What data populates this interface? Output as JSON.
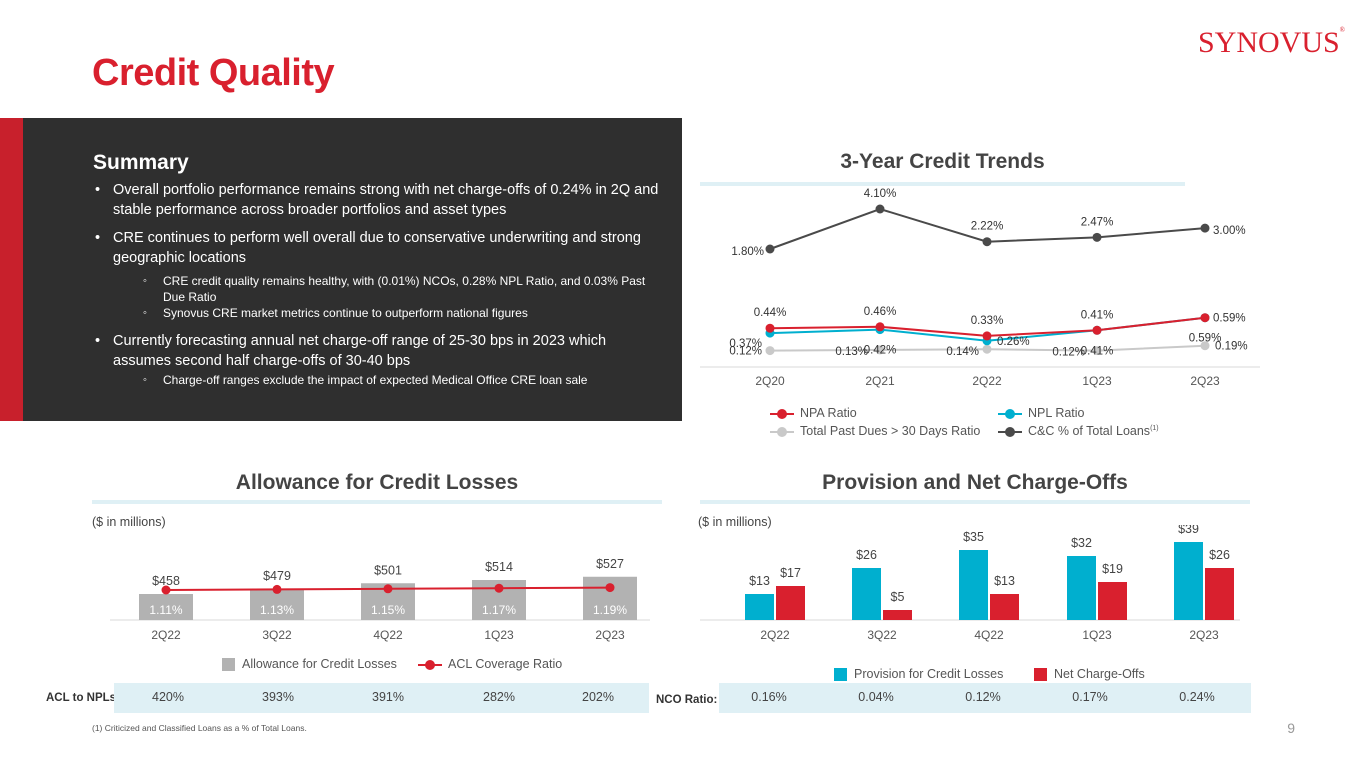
{
  "page": {
    "title": "Credit Quality",
    "logo": "SYNOVUS",
    "page_number": "9",
    "footnote": "(1) Criticized and Classified Loans as a % of Total Loans."
  },
  "colors": {
    "brand_red": "#d9202e",
    "teal": "#00afcf",
    "dark_gray": "#4a4a4a",
    "light_gray": "#c9c9c9",
    "bar_gray": "#b2b2b2",
    "panel": "#2f2f2f"
  },
  "summary": {
    "heading": "Summary",
    "b1": "Overall portfolio performance remains strong with net charge-offs of 0.24% in 2Q and stable performance across broader portfolios and asset types",
    "b2": "CRE continues to perform well overall due to conservative underwriting and strong geographic locations",
    "b2s1": "CRE credit quality remains healthy, with (0.01%) NCOs,  0.28% NPL Ratio, and 0.03% Past Due Ratio",
    "b2s2": "Synovus CRE market metrics continue to outperform national figures",
    "b3": "Currently forecasting annual net charge-off range of 25-30 bps in 2023 which assumes second half charge-offs of 30-40 bps",
    "b3s1": "Charge-off ranges exclude the impact of expected Medical Office CRE loan sale"
  },
  "chart_data": [
    {
      "id": "trends",
      "type": "line",
      "title": "3-Year Credit Trends",
      "categories": [
        "2Q20",
        "2Q21",
        "2Q22",
        "1Q23",
        "2Q23"
      ],
      "series": [
        {
          "name": "NPA Ratio",
          "color": "#d9202e",
          "values": [
            0.44,
            0.46,
            0.33,
            0.41,
            0.59
          ],
          "labels": [
            "0.44%",
            "0.46%",
            "0.33%",
            "0.41%",
            "0.59%"
          ]
        },
        {
          "name": "NPL Ratio",
          "color": "#00afcf",
          "values": [
            0.37,
            0.42,
            0.26,
            0.41,
            0.59
          ],
          "labels": [
            "0.37%",
            "0.42%",
            "0.26%",
            "0.41%",
            "0.59%"
          ]
        },
        {
          "name": "Total Past Dues > 30 Days Ratio",
          "color": "#c9c9c9",
          "values": [
            0.12,
            0.13,
            0.14,
            0.12,
            0.19
          ],
          "labels": [
            "0.12%",
            "0.13%",
            "0.14%",
            "0.12%",
            "0.19%"
          ]
        },
        {
          "name": "C&C % of Total Loans",
          "footnote_marker": "(1)",
          "color": "#4a4a4a",
          "values": [
            1.8,
            4.1,
            2.22,
            2.47,
            3.0
          ],
          "labels": [
            "1.80%",
            "4.10%",
            "2.22%",
            "2.47%",
            "3.00%"
          ]
        }
      ]
    },
    {
      "id": "acl",
      "type": "bar",
      "title": "Allowance for Credit Losses",
      "unit_label": "($ in millions)",
      "categories": [
        "2Q22",
        "3Q22",
        "4Q22",
        "1Q23",
        "2Q23"
      ],
      "series": [
        {
          "name": "Allowance for Credit Losses",
          "color": "#b2b2b2",
          "values": [
            458,
            479,
            501,
            514,
            527
          ],
          "labels": [
            "$458",
            "$479",
            "$501",
            "$514",
            "$527"
          ]
        },
        {
          "name": "ACL Coverage Ratio",
          "color": "#d9202e",
          "values": [
            1.11,
            1.13,
            1.15,
            1.17,
            1.19
          ],
          "labels": [
            "1.11%",
            "1.13%",
            "1.15%",
            "1.17%",
            "1.19%"
          ]
        }
      ],
      "ratio_row": {
        "label": "ACL to NPLs:",
        "values": [
          "420%",
          "393%",
          "391%",
          "282%",
          "202%"
        ]
      }
    },
    {
      "id": "provision",
      "type": "bar",
      "title": "Provision and Net Charge-Offs",
      "unit_label": "($ in millions)",
      "categories": [
        "2Q22",
        "3Q22",
        "4Q22",
        "1Q23",
        "2Q23"
      ],
      "series": [
        {
          "name": "Provision for Credit Losses",
          "color": "#00afcf",
          "values": [
            13,
            26,
            35,
            32,
            39
          ],
          "labels": [
            "$13",
            "$26",
            "$35",
            "$32",
            "$39"
          ]
        },
        {
          "name": "Net Charge-Offs",
          "color": "#d9202e",
          "values": [
            17,
            5,
            13,
            19,
            26
          ],
          "labels": [
            "$17",
            "$5",
            "$13",
            "$19",
            "$26"
          ]
        }
      ],
      "ratio_row": {
        "label": "NCO Ratio:",
        "values": [
          "0.16%",
          "0.04%",
          "0.12%",
          "0.17%",
          "0.24%"
        ]
      }
    }
  ]
}
